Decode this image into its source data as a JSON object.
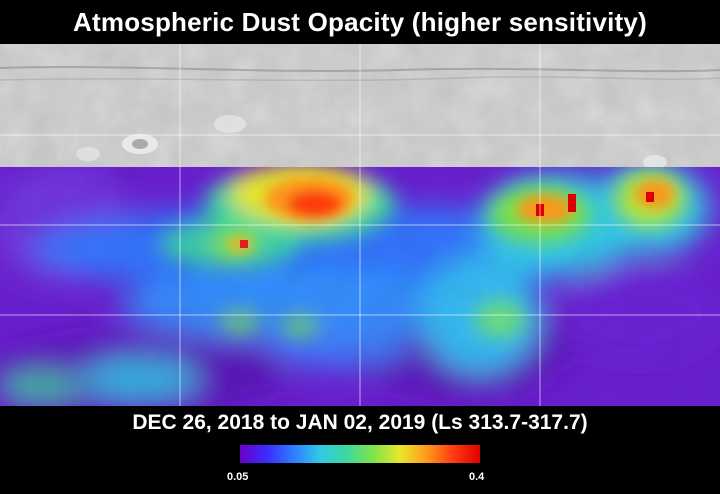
{
  "header": {
    "title": "Atmospheric Dust Opacity (higher sensitivity)"
  },
  "footer": {
    "date_range": "DEC 26, 2018 to JAN 02, 2019 (Ls 313.7-317.7)"
  },
  "colorbar": {
    "min_label": "0.05",
    "max_label": "0.4",
    "colors": [
      "#6a00c8",
      "#3b2cff",
      "#2f7bff",
      "#30c9e6",
      "#3dd9a0",
      "#7fe34a",
      "#e8e82a",
      "#ff9a1a",
      "#ff3b10",
      "#e00000"
    ]
  }
}
